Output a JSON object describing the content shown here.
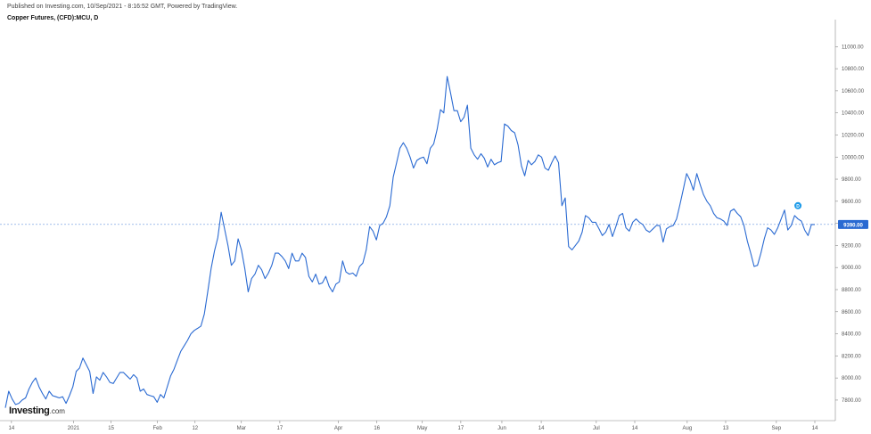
{
  "header": {
    "published": "Published on Investing.com, 10/Sep/2021 - 8:16:52 GMT, Powered by TradingView.",
    "title": "Copper Futures, (CFD):MCU, D"
  },
  "logo": {
    "brand": "Investing",
    "domain": ".com"
  },
  "colors": {
    "line": "#2a6ad2",
    "price_badge": "#2a6ad2",
    "dividend_marker": "#1e9be9",
    "axis": "#888888"
  },
  "chart_data": {
    "type": "line",
    "ylim": [
      7630,
      11180
    ],
    "y_ticks": [
      7800,
      8000,
      8200,
      8400,
      8600,
      8800,
      9000,
      9200,
      9400,
      9600,
      9800,
      10000,
      10200,
      10400,
      10600,
      10800,
      11000
    ],
    "y_tick_labels": [
      "7800.00",
      "8000.00",
      "8200.00",
      "8400.00",
      "8600.00",
      "8800.00",
      "9000.00",
      "9200.00",
      "9400.00",
      "9600.00",
      "9800.00",
      "10000.00",
      "10200.00",
      "10400.00",
      "10600.00",
      "10800.00",
      "11000.00"
    ],
    "x_tick_labels": [
      "14",
      "2021",
      "15",
      "Feb",
      "12",
      "Mar",
      "17",
      "Apr",
      "16",
      "May",
      "17",
      "Jun",
      "14",
      "Jul",
      "14",
      "Aug",
      "13",
      "Sep",
      "14"
    ],
    "x_tick_index": [
      7,
      78,
      121,
      174,
      217,
      270,
      314,
      381,
      425,
      477,
      521,
      568,
      613,
      676,
      720,
      780,
      824,
      882,
      926
    ],
    "last_price": 9390,
    "last_price_label": "9390.00",
    "dividend_marker": {
      "label": "D",
      "value": 9560
    },
    "series": [
      {
        "values": [
          7730,
          7880,
          7810,
          7760,
          7770,
          7800,
          7820,
          7900,
          7960,
          8000,
          7920,
          7860,
          7810,
          7880,
          7840,
          7830,
          7820,
          7830,
          7770,
          7840,
          7920,
          8060,
          8090,
          8180,
          8120,
          8060,
          7860,
          8010,
          7980,
          8050,
          8010,
          7960,
          7950,
          8000,
          8050,
          8050,
          8020,
          7990,
          8030,
          8000,
          7880,
          7900,
          7850,
          7840,
          7830,
          7780,
          7850,
          7820,
          7920,
          8020,
          8080,
          8160,
          8240,
          8290,
          8340,
          8400,
          8430,
          8450,
          8470,
          8580,
          8780,
          8990,
          9150,
          9270,
          9500,
          9350,
          9200,
          9020,
          9060,
          9260,
          9160,
          8990,
          8780,
          8900,
          8940,
          9020,
          8980,
          8900,
          8950,
          9020,
          9130,
          9130,
          9100,
          9060,
          8990,
          9130,
          9060,
          9060,
          9130,
          9090,
          8920,
          8870,
          8940,
          8850,
          8860,
          8920,
          8830,
          8780,
          8850,
          8870,
          9060,
          8960,
          8940,
          8950,
          8920,
          9010,
          9040,
          9160,
          9370,
          9330,
          9250,
          9380,
          9400,
          9460,
          9560,
          9820,
          9950,
          10080,
          10130,
          10080,
          10000,
          9900,
          9970,
          9990,
          10000,
          9940,
          10080,
          10120,
          10250,
          10430,
          10400,
          10730,
          10580,
          10420,
          10420,
          10320,
          10360,
          10470,
          10080,
          10020,
          9980,
          10030,
          9990,
          9910,
          9980,
          9930,
          9950,
          9960,
          10300,
          10280,
          10240,
          10220,
          10110,
          9920,
          9830,
          9970,
          9930,
          9960,
          10020,
          10000,
          9900,
          9880,
          9950,
          10010,
          9950,
          9560,
          9630,
          9190,
          9160,
          9200,
          9240,
          9320,
          9470,
          9450,
          9410,
          9410,
          9350,
          9290,
          9320,
          9390,
          9280,
          9370,
          9470,
          9490,
          9360,
          9330,
          9410,
          9440,
          9410,
          9390,
          9340,
          9320,
          9350,
          9380,
          9380,
          9230,
          9350,
          9370,
          9380,
          9440,
          9570,
          9710,
          9850,
          9790,
          9700,
          9850,
          9750,
          9660,
          9600,
          9560,
          9490,
          9450,
          9440,
          9420,
          9380,
          9510,
          9530,
          9490,
          9460,
          9380,
          9240,
          9130,
          9010,
          9020,
          9130,
          9260,
          9360,
          9340,
          9300,
          9360,
          9440,
          9520,
          9340,
          9380,
          9470,
          9440,
          9420,
          9340,
          9290,
          9390,
          9390
        ]
      }
    ]
  }
}
